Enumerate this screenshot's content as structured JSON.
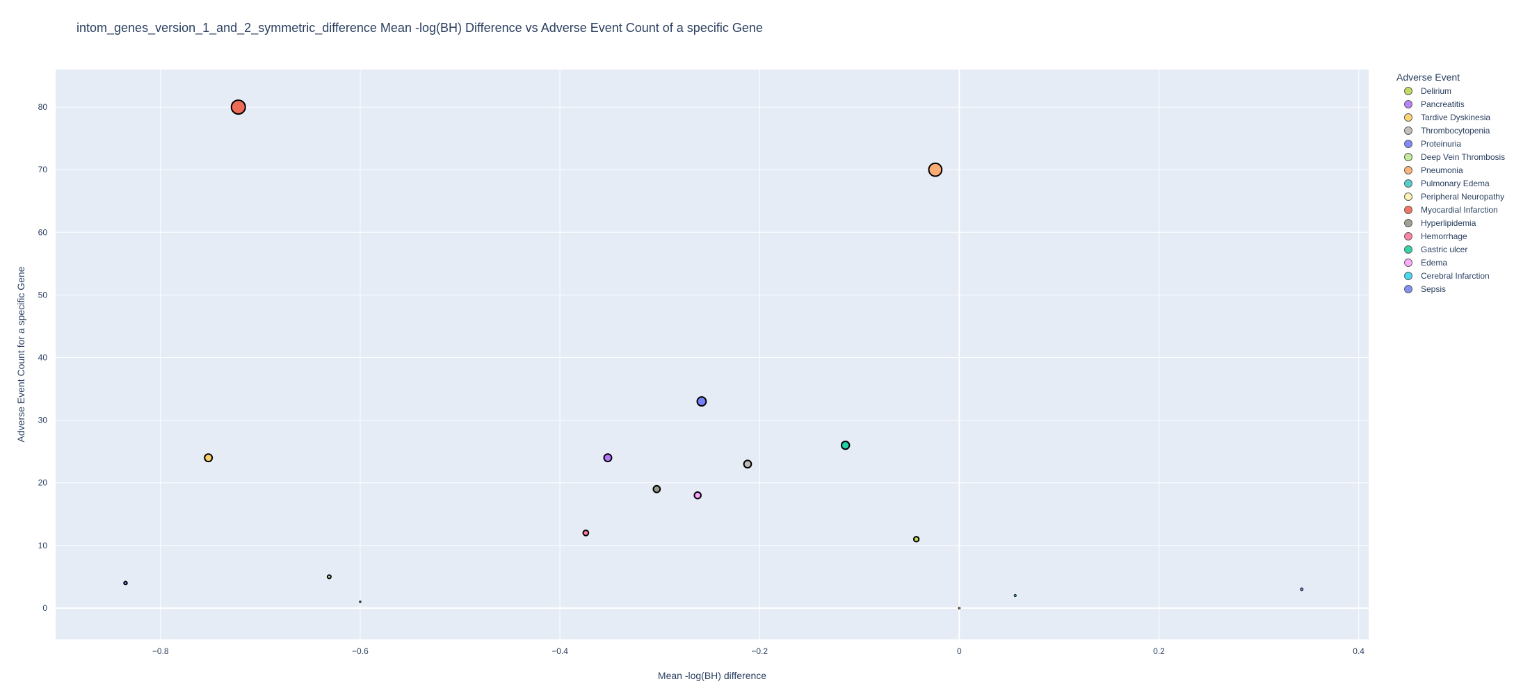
{
  "title": "intom_genes_version_1_and_2_symmetric_difference Mean -log(BH) Difference vs Adverse Event Count of a specific Gene",
  "legend_title": "Adverse Event",
  "chart_data": {
    "type": "scatter",
    "title": "intom_genes_version_1_and_2_symmetric_difference Mean -log(BH) Difference vs Adverse Event Count of a specific Gene",
    "xlabel": "Mean -log(BH) difference",
    "ylabel": "Adverse Event Count for a specific Gene",
    "xlim": [
      -0.905,
      0.41
    ],
    "ylim": [
      -5,
      86
    ],
    "x_ticks": [
      -0.8,
      -0.6,
      -0.4,
      -0.2,
      0,
      0.2,
      0.4
    ],
    "x_tick_labels": [
      "−0.8",
      "−0.6",
      "−0.4",
      "−0.2",
      "0",
      "0.2",
      "0.4"
    ],
    "y_ticks": [
      0,
      10,
      20,
      30,
      40,
      50,
      60,
      70,
      80
    ],
    "y_tick_labels": [
      "0",
      "10",
      "20",
      "30",
      "40",
      "50",
      "60",
      "70",
      "80"
    ],
    "grid": true,
    "legend_position": "right",
    "marker_size": "proportional to count",
    "series": [
      {
        "name": "Delirium",
        "color": "#B6D33C",
        "points": [
          {
            "x": -0.043,
            "y": 11
          }
        ]
      },
      {
        "name": "Pancreatitis",
        "color": "#AB63FA",
        "points": [
          {
            "x": -0.352,
            "y": 24
          }
        ]
      },
      {
        "name": "Tardive Dyskinesia",
        "color": "#FECB52",
        "points": [
          {
            "x": -0.752,
            "y": 24
          }
        ]
      },
      {
        "name": "Thrombocytopenia",
        "color": "#BAB0AC",
        "points": [
          {
            "x": -0.212,
            "y": 23
          }
        ]
      },
      {
        "name": "Proteinuria",
        "color": "#636EFA",
        "points": [
          {
            "x": -0.258,
            "y": 33
          }
        ]
      },
      {
        "name": "Deep Vein Thrombosis",
        "color": "#B6E880",
        "points": [
          {
            "x": -0.631,
            "y": 5
          }
        ]
      },
      {
        "name": "Pneumonia",
        "color": "#FFA15A",
        "points": [
          {
            "x": -0.024,
            "y": 70
          }
        ]
      },
      {
        "name": "Pulmonary Edema",
        "color": "#2BC3C3",
        "points": [
          {
            "x": -0.6,
            "y": 1
          }
        ]
      },
      {
        "name": "Peripheral Neuropathy",
        "color": "#FFF0A0",
        "points": [
          {
            "x": 0.0,
            "y": 0
          }
        ]
      },
      {
        "name": "Myocardial Infarction",
        "color": "#EF553B",
        "points": [
          {
            "x": -0.722,
            "y": 80
          }
        ]
      },
      {
        "name": "Hyperlipidemia",
        "color": "#8C8C78",
        "points": [
          {
            "x": -0.303,
            "y": 19
          }
        ]
      },
      {
        "name": "Hemorrhage",
        "color": "#FF6692",
        "points": [
          {
            "x": -0.374,
            "y": 12
          }
        ]
      },
      {
        "name": "Gastric ulcer",
        "color": "#00CC96",
        "points": [
          {
            "x": -0.114,
            "y": 26
          }
        ]
      },
      {
        "name": "Edema",
        "color": "#FF97FF",
        "points": [
          {
            "x": -0.262,
            "y": 18
          }
        ]
      },
      {
        "name": "Cerebral Infarction",
        "color": "#19D3F3",
        "points": [
          {
            "x": 0.056,
            "y": 2
          }
        ]
      },
      {
        "name": "Sepsis",
        "color": "#6478F0",
        "points": [
          {
            "x": -0.835,
            "y": 4
          },
          {
            "x": 0.343,
            "y": 3
          }
        ]
      }
    ]
  },
  "colors": {
    "plot_background": "#E5ECF6",
    "grid": "#ffffff",
    "text": "#2a3f5f"
  }
}
